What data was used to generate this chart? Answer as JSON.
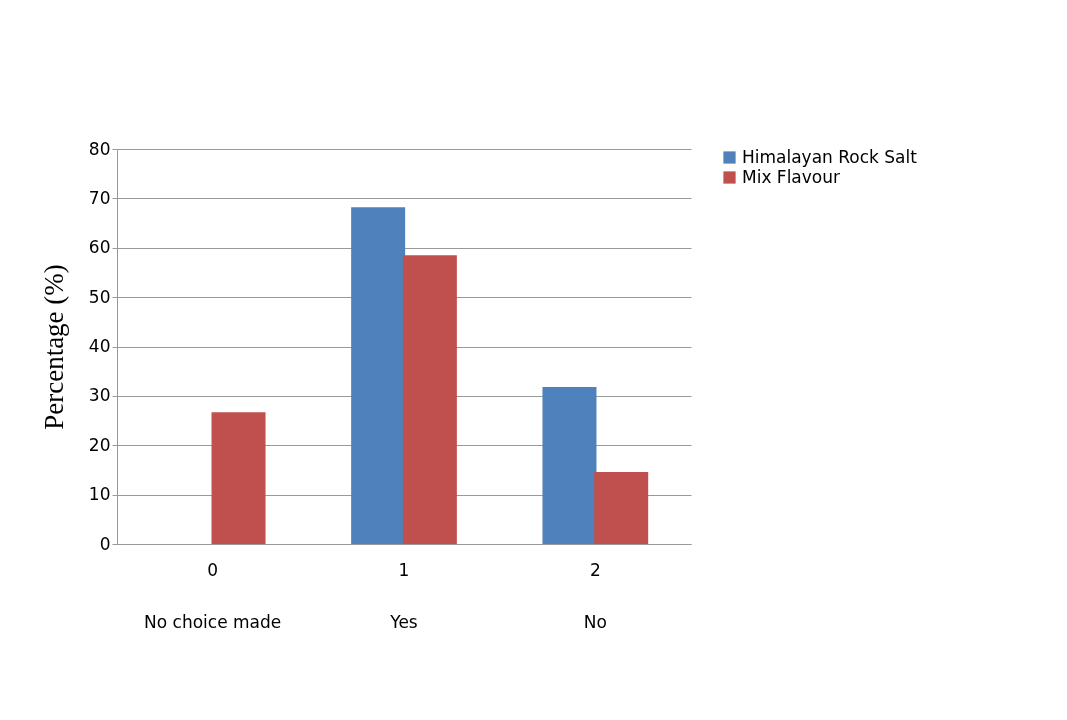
{
  "chart_data": {
    "type": "bar",
    "ylabel": "Percentage (%)",
    "categories": [
      "0",
      "1",
      "2"
    ],
    "series": [
      {
        "name": "Himalayan Rock Salt",
        "color": "#4f81bd",
        "values": [
          0,
          68.2,
          31.8
        ]
      },
      {
        "name": "Mix Flavour",
        "color": "#c0504d",
        "values": [
          26.7,
          58.5,
          14.6
        ]
      }
    ],
    "ylim": [
      0,
      80
    ],
    "yticks": [
      0,
      10,
      20,
      30,
      40,
      50,
      60,
      70,
      80
    ],
    "grid": "y",
    "legend": "right",
    "annotations": [
      "No choice made",
      "Yes",
      "No"
    ]
  }
}
